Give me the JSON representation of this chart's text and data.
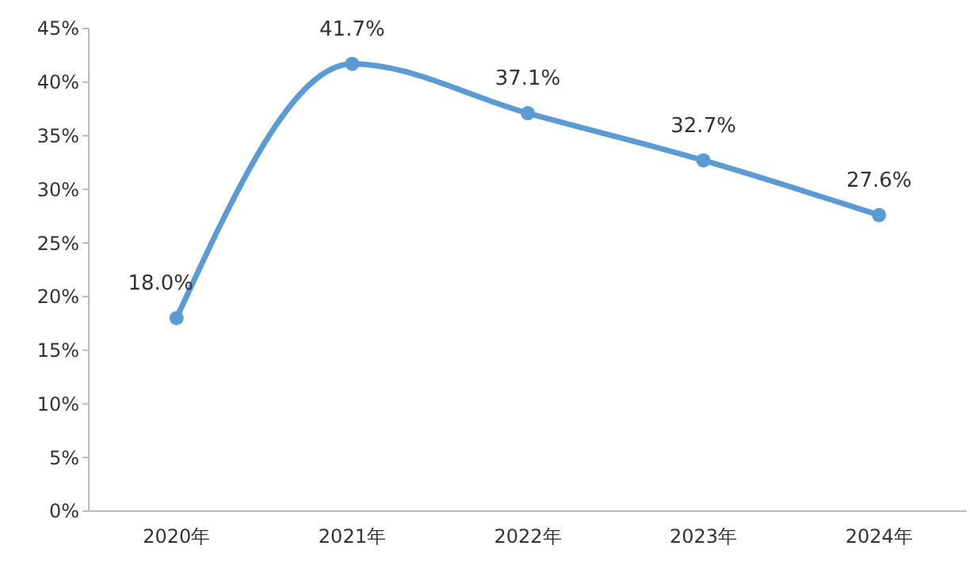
{
  "chart_data": {
    "type": "line",
    "categories": [
      "2020年",
      "2021年",
      "2022年",
      "2023年",
      "2024年"
    ],
    "series": [
      {
        "color": "#5b9bd5",
        "values": [
          18.0,
          41.7,
          37.1,
          32.7,
          27.6
        ],
        "value_labels": [
          "18.0%",
          "41.7%",
          "37.1%",
          "32.7%",
          "27.6%"
        ]
      }
    ],
    "ylim": [
      0,
      45
    ],
    "yticks": [
      {
        "value": 0,
        "label": "0%"
      },
      {
        "value": 5,
        "label": "5%"
      },
      {
        "value": 10,
        "label": "10%"
      },
      {
        "value": 15,
        "label": "15%"
      },
      {
        "value": 20,
        "label": "20%"
      },
      {
        "value": 25,
        "label": "25%"
      },
      {
        "value": 30,
        "label": "30%"
      },
      {
        "value": 35,
        "label": "35%"
      },
      {
        "value": 40,
        "label": "40%"
      },
      {
        "value": 45,
        "label": "45%"
      }
    ],
    "grid": false,
    "marker": "circle",
    "line_style": "solid"
  }
}
